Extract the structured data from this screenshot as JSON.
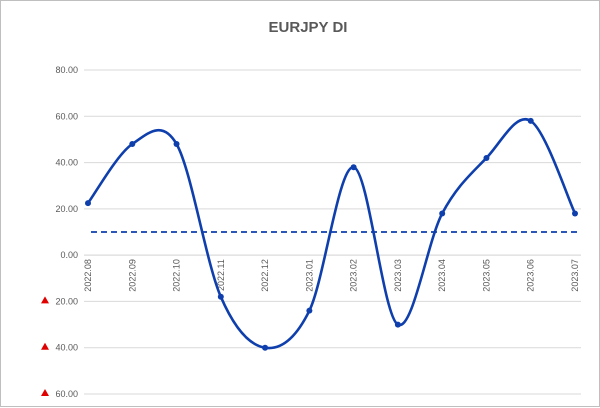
{
  "chart_data": {
    "type": "line",
    "title": "EURJPY DI",
    "xlabel": "",
    "ylabel": "",
    "categories": [
      "2022.08",
      "2022.09",
      "2022.10",
      "2022.11",
      "2022.12",
      "2023.01",
      "2023.02",
      "2023.03",
      "2023.04",
      "2023.05",
      "2023.06",
      "2023.07"
    ],
    "series": [
      {
        "values": [
          22.5,
          48,
          48,
          -18,
          -40,
          -24,
          38,
          -30,
          18,
          42,
          58,
          18
        ],
        "color": "#0f3fad",
        "smooth": true,
        "markers": true
      }
    ],
    "reference_line": {
      "value": 10,
      "style": "dashed",
      "color": "#0f3fad"
    },
    "ylim": [
      -60,
      80
    ],
    "y_ticks": [
      {
        "value": 80,
        "label": "80.00",
        "negative_marker": false
      },
      {
        "value": 60,
        "label": "60.00",
        "negative_marker": false
      },
      {
        "value": 40,
        "label": "40.00",
        "negative_marker": false
      },
      {
        "value": 20,
        "label": "20.00",
        "negative_marker": false
      },
      {
        "value": 0,
        "label": "0.00",
        "negative_marker": false
      },
      {
        "value": -20,
        "label": "20.00",
        "negative_marker": true
      },
      {
        "value": -40,
        "label": "40.00",
        "negative_marker": true
      },
      {
        "value": -60,
        "label": "60.00",
        "negative_marker": true
      }
    ],
    "grid": "horizontal",
    "legend": "none",
    "colors": {
      "gridline": "#d9d9d9",
      "negative_marker": "#e00000",
      "text": "#595959"
    }
  }
}
